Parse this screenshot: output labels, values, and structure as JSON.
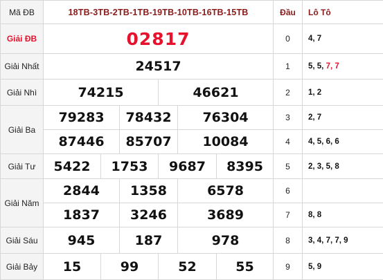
{
  "main": {
    "code_label": "Mã ĐB",
    "codes": "18TB-3TB-2TB-1TB-19TB-10TB-16TB-15TB",
    "special_label": "Giải ĐB",
    "special": "02817",
    "first_label": "Giải Nhất",
    "first": "24517",
    "second_label": "Giải Nhì",
    "second": [
      "74215",
      "46621"
    ],
    "third_label": "Giải Ba",
    "third": [
      "79283",
      "78432",
      "76304",
      "87446",
      "85707",
      "10084"
    ],
    "fourth_label": "Giải Tư",
    "fourth": [
      "5422",
      "1753",
      "9687",
      "8395"
    ],
    "fifth_label": "Giải Năm",
    "fifth": [
      "2844",
      "1358",
      "6578",
      "1837",
      "3246",
      "3689"
    ],
    "sixth_label": "Giải Sáu",
    "sixth": [
      "945",
      "187",
      "978"
    ],
    "seventh_label": "Giải Bảy",
    "seventh": [
      "15",
      "99",
      "52",
      "55"
    ]
  },
  "loto": {
    "head_label": "Đầu",
    "loto_label": "Lô Tô",
    "rows": [
      {
        "head": "0",
        "parts": [
          {
            "t": "4, 7",
            "hi": false
          }
        ]
      },
      {
        "head": "1",
        "parts": [
          {
            "t": "5, 5, ",
            "hi": false
          },
          {
            "t": "7, 7",
            "hi": true
          }
        ]
      },
      {
        "head": "2",
        "parts": [
          {
            "t": "1, 2",
            "hi": false
          }
        ]
      },
      {
        "head": "3",
        "parts": [
          {
            "t": "2, 7",
            "hi": false
          }
        ]
      },
      {
        "head": "4",
        "parts": [
          {
            "t": "4, 5, 6, 6",
            "hi": false
          }
        ]
      },
      {
        "head": "5",
        "parts": [
          {
            "t": "2, 3, 5, 8",
            "hi": false
          }
        ]
      },
      {
        "head": "6",
        "parts": [
          {
            "t": "",
            "hi": false
          }
        ]
      },
      {
        "head": "7",
        "parts": [
          {
            "t": "8, 8",
            "hi": false
          }
        ]
      },
      {
        "head": "8",
        "parts": [
          {
            "t": "3, 4, 7, 7, 9",
            "hi": false
          }
        ]
      },
      {
        "head": "9",
        "parts": [
          {
            "t": "5, 9",
            "hi": false
          }
        ]
      }
    ]
  }
}
